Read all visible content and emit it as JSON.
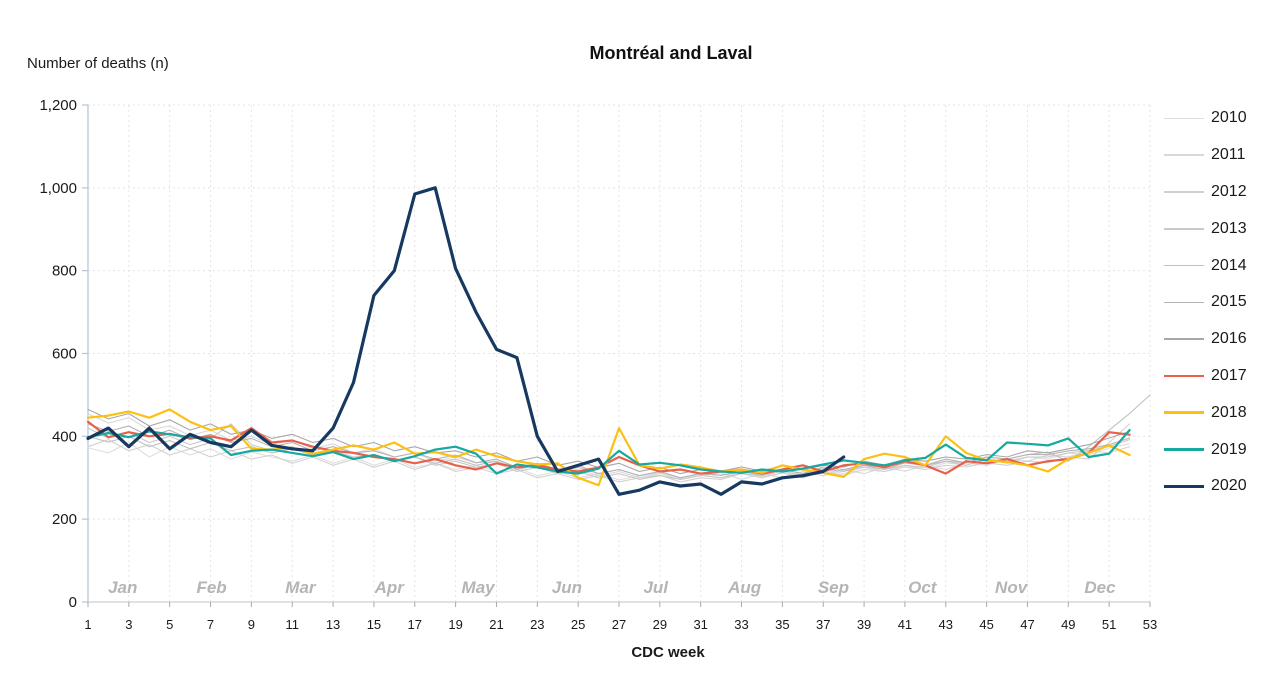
{
  "title": "Montréal and Laval",
  "y_axis_label": "Number of deaths (n)",
  "x_axis_label": "CDC week",
  "colors": {
    "grid": "#e4e4e4",
    "y_axis_line": "#b9c8d6",
    "x_axis_line": "#cfcfcf",
    "tick": "#a9a9a9",
    "month_label": "#b5b5b5",
    "tick_label": "#1a1a1a",
    "accent_2017": "#e8604c",
    "accent_2018": "#fcc014",
    "accent_2019": "#17a89f",
    "accent_2020": "#17395f"
  },
  "chart_data": {
    "type": "line",
    "title": "Montréal and Laval",
    "xlabel": "CDC week",
    "ylabel": "Number of deaths (n)",
    "xlim": [
      1,
      53
    ],
    "ylim": [
      0,
      1200
    ],
    "grid": true,
    "legend_position": "right",
    "y_ticks": [
      0,
      200,
      400,
      600,
      800,
      1000,
      1200
    ],
    "y_tick_labels": [
      "0",
      "200",
      "400",
      "600",
      "800",
      "1,000",
      "1,200"
    ],
    "x_ticks": [
      1,
      3,
      5,
      7,
      9,
      11,
      13,
      15,
      17,
      19,
      21,
      23,
      25,
      27,
      29,
      31,
      33,
      35,
      37,
      39,
      41,
      43,
      45,
      47,
      49,
      51,
      53
    ],
    "months": [
      {
        "label": "Jan",
        "week": 2.7
      },
      {
        "label": "Feb",
        "week": 7.05
      },
      {
        "label": "Mar",
        "week": 11.4
      },
      {
        "label": "Apr",
        "week": 15.75
      },
      {
        "label": "May",
        "week": 20.1
      },
      {
        "label": "Jun",
        "week": 24.45
      },
      {
        "label": "Jul",
        "week": 28.8
      },
      {
        "label": "Aug",
        "week": 33.15
      },
      {
        "label": "Sep",
        "week": 37.5
      },
      {
        "label": "Oct",
        "week": 41.85
      },
      {
        "label": "Nov",
        "week": 46.2
      },
      {
        "label": "Dec",
        "week": 50.55
      }
    ],
    "series": [
      {
        "name": "2010",
        "color": "#dedede",
        "width": 1.1,
        "start_week": 1,
        "values": [
          372,
          360,
          385,
          350,
          375,
          355,
          370,
          345,
          362,
          350,
          340,
          355,
          335,
          350,
          330,
          345,
          325,
          335,
          320,
          330,
          315,
          325,
          305,
          315,
          300,
          310,
          295,
          305,
          312,
          296,
          306,
          300,
          315,
          302,
          312,
          305,
          320,
          310,
          325,
          315,
          330,
          320,
          336,
          330,
          345,
          335,
          350,
          345,
          360,
          355,
          372,
          382
        ]
      },
      {
        "name": "2011",
        "color": "#d8d8d8",
        "width": 1.1,
        "start_week": 1,
        "values": [
          455,
          432,
          445,
          415,
          425,
          402,
          415,
          390,
          400,
          380,
          392,
          370,
          382,
          360,
          370,
          350,
          360,
          340,
          350,
          336,
          340,
          325,
          330,
          315,
          320,
          305,
          315,
          300,
          310,
          296,
          305,
          312,
          296,
          310,
          300,
          315,
          305,
          320,
          310,
          325,
          316,
          330,
          320,
          336,
          330,
          345,
          340,
          355,
          350,
          365,
          360,
          375
        ]
      },
      {
        "name": "2012",
        "color": "#d1d1d1",
        "width": 1.1,
        "start_week": 1,
        "values": [
          375,
          392,
          365,
          380,
          355,
          370,
          350,
          365,
          345,
          355,
          335,
          350,
          330,
          345,
          325,
          340,
          320,
          335,
          315,
          325,
          310,
          320,
          300,
          310,
          296,
          305,
          290,
          300,
          306,
          290,
          300,
          296,
          310,
          300,
          312,
          300,
          316,
          306,
          320,
          315,
          326,
          320,
          330,
          326,
          336,
          330,
          340,
          336,
          350,
          345,
          385,
          430
        ]
      },
      {
        "name": "2013",
        "color": "#c9c9c9",
        "width": 1.1,
        "start_week": 1,
        "values": [
          420,
          396,
          410,
          385,
          400,
          380,
          395,
          430,
          380,
          365,
          375,
          355,
          365,
          350,
          355,
          340,
          350,
          330,
          340,
          325,
          335,
          315,
          325,
          310,
          315,
          300,
          310,
          296,
          305,
          296,
          306,
          300,
          310,
          305,
          316,
          306,
          320,
          315,
          326,
          320,
          330,
          325,
          340,
          330,
          345,
          340,
          350,
          350,
          360,
          366,
          376,
          392
        ]
      },
      {
        "name": "2014",
        "color": "#c1c1c1",
        "width": 1.1,
        "start_week": 1,
        "values": [
          400,
          386,
          400,
          375,
          390,
          370,
          385,
          365,
          375,
          360,
          370,
          355,
          365,
          345,
          355,
          340,
          350,
          335,
          345,
          330,
          340,
          320,
          330,
          315,
          325,
          310,
          320,
          305,
          315,
          300,
          310,
          306,
          316,
          306,
          320,
          310,
          322,
          316,
          330,
          320,
          336,
          330,
          340,
          336,
          350,
          345,
          356,
          362,
          340,
          375,
          415,
          455,
          500
        ]
      },
      {
        "name": "2015",
        "color": "#b4b4b4",
        "width": 1.1,
        "start_week": 1,
        "values": [
          430,
          412,
          425,
          400,
          415,
          392,
          405,
          385,
          395,
          375,
          385,
          365,
          375,
          360,
          365,
          350,
          360,
          345,
          355,
          336,
          345,
          325,
          335,
          320,
          330,
          310,
          320,
          305,
          315,
          300,
          310,
          306,
          315,
          310,
          320,
          310,
          326,
          320,
          330,
          326,
          336,
          330,
          345,
          336,
          350,
          345,
          356,
          356,
          365,
          370,
          380,
          396
        ]
      },
      {
        "name": "2016",
        "color": "#a8a8a8",
        "width": 1.1,
        "start_week": 1,
        "values": [
          465,
          442,
          455,
          425,
          440,
          415,
          430,
          405,
          415,
          395,
          405,
          385,
          395,
          375,
          385,
          365,
          375,
          360,
          365,
          350,
          360,
          340,
          350,
          330,
          340,
          325,
          335,
          315,
          325,
          310,
          320,
          316,
          326,
          316,
          330,
          320,
          330,
          326,
          340,
          330,
          345,
          340,
          350,
          345,
          356,
          350,
          365,
          360,
          370,
          380,
          396,
          412
        ]
      },
      {
        "name": "2017",
        "color": "#e8604c",
        "width": 2.2,
        "start_week": 1,
        "values": [
          435,
          398,
          410,
          400,
          406,
          395,
          400,
          390,
          420,
          385,
          390,
          375,
          365,
          360,
          350,
          345,
          335,
          345,
          330,
          320,
          335,
          325,
          330,
          320,
          315,
          325,
          350,
          330,
          315,
          320,
          310,
          315,
          320,
          310,
          320,
          330,
          315,
          330,
          335,
          325,
          340,
          330,
          310,
          340,
          335,
          345,
          330,
          340,
          345,
          360,
          410,
          404
        ]
      },
      {
        "name": "2018",
        "color": "#fcc014",
        "width": 2.2,
        "start_week": 1,
        "values": [
          445,
          450,
          460,
          445,
          465,
          435,
          415,
          425,
          370,
          368,
          372,
          358,
          368,
          378,
          368,
          385,
          358,
          362,
          350,
          368,
          352,
          340,
          332,
          335,
          300,
          282,
          420,
          330,
          322,
          332,
          325,
          315,
          320,
          312,
          330,
          320,
          312,
          302,
          345,
          358,
          350,
          330,
          400,
          360,
          342,
          338,
          330,
          315,
          345,
          360,
          378,
          355
        ]
      },
      {
        "name": "2019",
        "color": "#17a89f",
        "width": 2.2,
        "start_week": 1,
        "values": [
          398,
          408,
          398,
          412,
          405,
          398,
          395,
          355,
          365,
          368,
          360,
          352,
          362,
          345,
          355,
          340,
          352,
          368,
          375,
          358,
          310,
          332,
          325,
          315,
          310,
          322,
          365,
          332,
          336,
          330,
          320,
          315,
          312,
          320,
          315,
          322,
          332,
          342,
          336,
          330,
          342,
          348,
          380,
          348,
          342,
          385,
          382,
          378,
          395,
          350,
          358,
          415
        ]
      },
      {
        "name": "2020",
        "color": "#17395f",
        "width": 3.2,
        "start_week": 1,
        "values": [
          395,
          420,
          375,
          420,
          370,
          405,
          385,
          375,
          415,
          378,
          370,
          365,
          420,
          530,
          740,
          800,
          985,
          1000,
          805,
          700,
          610,
          590,
          400,
          315,
          330,
          345,
          260,
          270,
          290,
          280,
          285,
          260,
          290,
          285,
          300,
          305,
          315,
          350
        ]
      }
    ]
  },
  "legend": {
    "entries": [
      "2010",
      "2011",
      "2012",
      "2013",
      "2014",
      "2015",
      "2016",
      "2017",
      "2018",
      "2019",
      "2020"
    ]
  }
}
